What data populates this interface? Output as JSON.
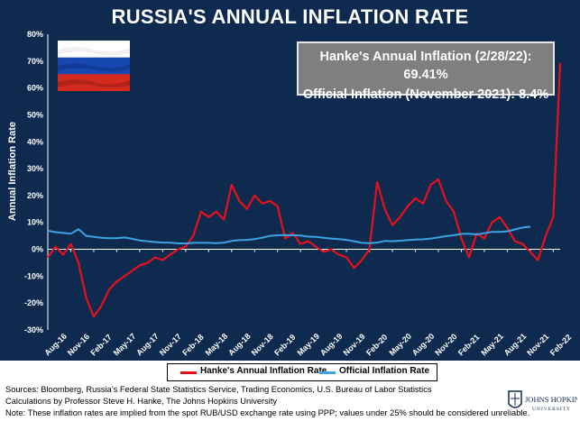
{
  "title": "RUSSIA'S ANNUAL INFLATION RATE",
  "annotation": {
    "line1": "Hanke's Annual Inflation (2/28/22): 69.41%",
    "line2": "Official Inflation (November 2021): 8.4%"
  },
  "footer": {
    "sources": "Sources: Bloomberg, Russia's Federal State Statistics Service, Trading Economics, U.S. Bureau of Labor Statistics",
    "calc": "Calculations by Professor Steve H. Hanke, The Johns Hopkins University",
    "note": "Note: These inflation rates are implied from the spot RUB/USD exchange rate using PPP; values under 25% should be considered unreliable."
  },
  "logo": {
    "name": "JOHNS HOPKINS",
    "sub": "UNIVERSITY"
  },
  "colors": {
    "background": "#0e2a4e",
    "hanke": "#e8101a",
    "official": "#3ba3e6",
    "annotation_box": "#7f7f7f"
  },
  "chart_data": {
    "type": "line",
    "ylabel": "Annual Inflation Rate",
    "ylim": [
      -30,
      80
    ],
    "yticks": [
      -30,
      -20,
      -10,
      0,
      10,
      20,
      30,
      40,
      50,
      60,
      70,
      80
    ],
    "ytick_labels": [
      "-30%",
      "-20%",
      "-10%",
      "0%",
      "10%",
      "20%",
      "30%",
      "40%",
      "50%",
      "60%",
      "70%",
      "80%"
    ],
    "x_range": [
      "2016-08",
      "2022-02"
    ],
    "xticks": [
      "2016-08",
      "2016-11",
      "2017-02",
      "2017-05",
      "2017-08",
      "2017-11",
      "2018-02",
      "2018-05",
      "2018-08",
      "2018-11",
      "2019-02",
      "2019-05",
      "2019-08",
      "2019-11",
      "2020-02",
      "2020-05",
      "2020-08",
      "2020-11",
      "2021-02",
      "2021-05",
      "2021-08",
      "2021-11",
      "2022-02"
    ],
    "xtick_labels": [
      "Aug-16",
      "Nov-16",
      "Feb-17",
      "May-17",
      "Aug-17",
      "Nov-17",
      "Feb-18",
      "May-18",
      "Aug-18",
      "Nov-18",
      "Feb-19",
      "May-19",
      "Aug-19",
      "Nov-19",
      "Feb-20",
      "May-20",
      "Aug-20",
      "Nov-20",
      "Feb-21",
      "May-21",
      "Aug-21",
      "Nov-21",
      "Feb-22"
    ],
    "legend_position": "bottom",
    "grid": false,
    "series": [
      {
        "name": "Hanke's Annual Inflation Rate",
        "color": "#e8101a",
        "x": [
          "2016-08",
          "2016-09",
          "2016-10",
          "2016-11",
          "2016-12",
          "2017-01",
          "2017-02",
          "2017-03",
          "2017-04",
          "2017-05",
          "2017-06",
          "2017-07",
          "2017-08",
          "2017-09",
          "2017-10",
          "2017-11",
          "2017-12",
          "2018-01",
          "2018-02",
          "2018-03",
          "2018-04",
          "2018-05",
          "2018-06",
          "2018-07",
          "2018-08",
          "2018-09",
          "2018-10",
          "2018-11",
          "2018-12",
          "2019-01",
          "2019-02",
          "2019-03",
          "2019-04",
          "2019-05",
          "2019-06",
          "2019-07",
          "2019-08",
          "2019-09",
          "2019-10",
          "2019-11",
          "2019-12",
          "2020-01",
          "2020-02",
          "2020-03",
          "2020-04",
          "2020-05",
          "2020-06",
          "2020-07",
          "2020-08",
          "2020-09",
          "2020-10",
          "2020-11",
          "2020-12",
          "2021-01",
          "2021-02",
          "2021-03",
          "2021-04",
          "2021-05",
          "2021-06",
          "2021-07",
          "2021-08",
          "2021-09",
          "2021-10",
          "2021-11",
          "2021-12",
          "2022-01",
          "2022-02",
          "2022-02-28"
        ],
        "values": [
          -3,
          1,
          -2,
          2,
          -5,
          -18,
          -25,
          -21,
          -15,
          -12,
          -10,
          -8,
          -6,
          -5,
          -3,
          -4,
          -2,
          0,
          1,
          5,
          14,
          12,
          14,
          11,
          24,
          18,
          15,
          20,
          17,
          18,
          16,
          4,
          6,
          2,
          3,
          1,
          -1,
          0,
          -2,
          -3,
          -7,
          -4,
          0,
          25,
          15,
          9,
          12,
          16,
          19,
          17,
          24,
          26,
          18,
          14,
          4,
          -3,
          6,
          4,
          10,
          12,
          8,
          3,
          2,
          -1,
          -4,
          5,
          12,
          69.41
        ]
      },
      {
        "name": "Official Inflation Rate",
        "color": "#3ba3e6",
        "x": [
          "2016-08",
          "2016-09",
          "2016-10",
          "2016-11",
          "2016-12",
          "2017-01",
          "2017-02",
          "2017-03",
          "2017-04",
          "2017-05",
          "2017-06",
          "2017-07",
          "2017-08",
          "2017-09",
          "2017-10",
          "2017-11",
          "2017-12",
          "2018-01",
          "2018-02",
          "2018-03",
          "2018-04",
          "2018-05",
          "2018-06",
          "2018-07",
          "2018-08",
          "2018-09",
          "2018-10",
          "2018-11",
          "2018-12",
          "2019-01",
          "2019-02",
          "2019-03",
          "2019-04",
          "2019-05",
          "2019-06",
          "2019-07",
          "2019-08",
          "2019-09",
          "2019-10",
          "2019-11",
          "2019-12",
          "2020-01",
          "2020-02",
          "2020-03",
          "2020-04",
          "2020-05",
          "2020-06",
          "2020-07",
          "2020-08",
          "2020-09",
          "2020-10",
          "2020-11",
          "2020-12",
          "2021-01",
          "2021-02",
          "2021-03",
          "2021-04",
          "2021-05",
          "2021-06",
          "2021-07",
          "2021-08",
          "2021-09",
          "2021-10",
          "2021-11"
        ],
        "values": [
          6.9,
          6.4,
          6.1,
          5.8,
          7.5,
          5.0,
          4.6,
          4.3,
          4.1,
          4.1,
          4.4,
          3.9,
          3.3,
          3.0,
          2.7,
          2.5,
          2.5,
          2.2,
          2.2,
          2.4,
          2.4,
          2.4,
          2.3,
          2.5,
          3.1,
          3.4,
          3.5,
          3.8,
          4.3,
          5.0,
          5.2,
          5.3,
          5.2,
          5.1,
          4.7,
          4.6,
          4.3,
          4.0,
          3.8,
          3.5,
          3.0,
          2.4,
          2.3,
          2.5,
          3.1,
          3.0,
          3.2,
          3.4,
          3.6,
          3.7,
          4.0,
          4.4,
          4.9,
          5.2,
          5.7,
          5.8,
          5.5,
          6.0,
          6.5,
          6.5,
          6.7,
          7.4,
          8.1,
          8.4
        ]
      }
    ]
  }
}
